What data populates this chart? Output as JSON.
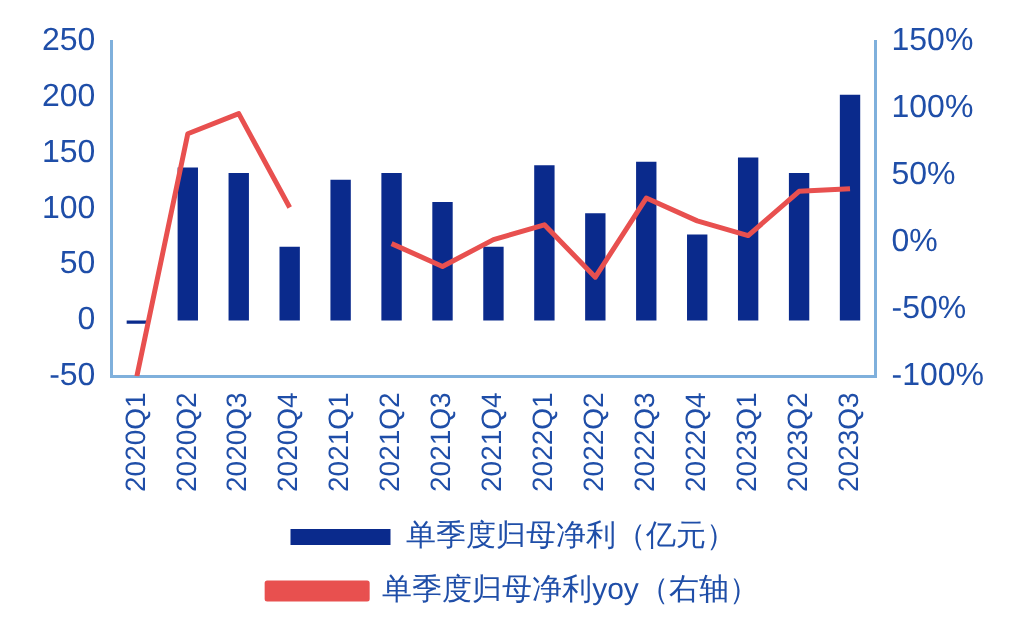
{
  "chart_data": {
    "type": "bar",
    "categories": [
      "2020Q1",
      "2020Q2",
      "2020Q3",
      "2020Q4",
      "2021Q1",
      "2021Q2",
      "2021Q3",
      "2021Q4",
      "2022Q1",
      "2022Q2",
      "2022Q3",
      "2022Q4",
      "2023Q1",
      "2023Q2",
      "2023Q3"
    ],
    "series": [
      {
        "name": "单季度归母净利（亿元）",
        "color": "#0a2a8c",
        "values": [
          -3,
          137,
          132,
          66,
          126,
          132,
          106,
          66,
          139,
          96,
          142,
          77,
          146,
          132,
          202
        ]
      },
      {
        "name": "单季度归母净利yoy（右轴）",
        "type": "line",
        "axis": "y2",
        "color": "#e8504f",
        "values": [
          -100,
          81,
          96,
          26,
          null,
          -1,
          -18,
          2,
          13,
          -26,
          33,
          16,
          5,
          38,
          40
        ]
      }
    ],
    "ylim": [
      -50,
      250
    ],
    "yticks": [
      -50,
      0,
      50,
      100,
      150,
      200,
      250
    ],
    "y2lim": [
      -100,
      150
    ],
    "y2ticks": [
      {
        "value": -100,
        "label": "-100%"
      },
      {
        "value": -50,
        "label": "-50%"
      },
      {
        "value": 0,
        "label": "0%"
      },
      {
        "value": 50,
        "label": "50%"
      },
      {
        "value": 100,
        "label": "100%"
      },
      {
        "value": 150,
        "label": "150%"
      }
    ],
    "grid": false,
    "legend": "bottom",
    "marker": "none",
    "line_style": "solid"
  }
}
